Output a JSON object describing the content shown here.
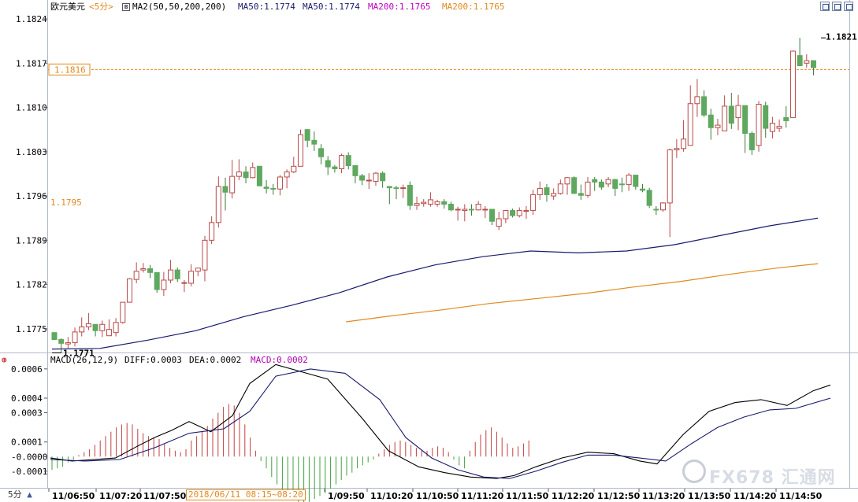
{
  "header": {
    "symbol": "欧元美元",
    "period": "<5分>",
    "indicator": "MA2(50,50,200,200)",
    "ma50_a": "MA50:1.1774",
    "ma50_b": "MA50:1.1774",
    "ma200_a": "MA200:1.1765",
    "ma200_b": "MA200:1.1765"
  },
  "macd_header": {
    "name": "MACD(26,12,9)",
    "diff": "DIFF:0.0003",
    "dea": "DEA:0.0002",
    "macd": "MACD:0.0002"
  },
  "bottom_bar": {
    "period": "5分",
    "range": "2018/06/11 08:15~08:20"
  },
  "watermark": "FX678 汇通网",
  "colors": {
    "up": "#b84a4a",
    "down": "#5fa85f",
    "ma50": "#1a1a6e",
    "ma200": "#e08a1e",
    "macd_label": "#b000b0",
    "ref_line": "#e08a1e"
  },
  "chart_data": [
    {
      "type": "candlestick",
      "title": "欧元美元 <5分>",
      "y_ticks": [
        "1.1824",
        "1.1817",
        "1.1810",
        "1.1803",
        "1.1796",
        "1.1789",
        "1.1782",
        "1.1775"
      ],
      "ylim": [
        1.1769,
        1.1824
      ],
      "x_ticks": [
        "11/06:50",
        "11/07:20",
        "11/07:50",
        "1/09:50",
        "11/10:20",
        "11/10:50",
        "11/11:20",
        "11/11:50",
        "11/12:20",
        "11/12:50",
        "11/13:20",
        "11/13:50",
        "11/14:20",
        "11/14:50"
      ],
      "annotations": {
        "high": "1.1821",
        "low": "1.1771",
        "current_price": "1.1816",
        "ref_price": "1.1795"
      },
      "candles": [
        [
          1.17744,
          1.17733,
          1.17743,
          1.17733
        ],
        [
          1.17733,
          1.17727,
          1.17735,
          1.17712
        ],
        [
          1.17726,
          1.17728,
          1.17737,
          1.17718
        ],
        [
          1.17728,
          1.17745,
          1.17752,
          1.17722
        ],
        [
          1.17745,
          1.17753,
          1.17768,
          1.17738
        ],
        [
          1.17753,
          1.17758,
          1.17775,
          1.17748
        ],
        [
          1.17757,
          1.17747,
          1.17757,
          1.17738
        ],
        [
          1.17747,
          1.17757,
          1.17763,
          1.17737
        ],
        [
          1.17739,
          1.17749,
          1.17765,
          1.17739
        ],
        [
          1.17744,
          1.1776,
          1.17767,
          1.17738
        ],
        [
          1.1776,
          1.17792,
          1.17792,
          1.17758
        ],
        [
          1.17792,
          1.17829,
          1.1783,
          1.17792
        ],
        [
          1.17828,
          1.17841,
          1.17855,
          1.17822
        ],
        [
          1.17843,
          1.17845,
          1.17854,
          1.17839
        ],
        [
          1.17845,
          1.17839,
          1.17851,
          1.1783
        ],
        [
          1.17839,
          1.17812,
          1.17839,
          1.17807
        ],
        [
          1.17812,
          1.17827,
          1.1784,
          1.17802
        ],
        [
          1.17827,
          1.17843,
          1.17859,
          1.17822
        ],
        [
          1.17843,
          1.17829,
          1.17847,
          1.17824
        ],
        [
          1.17823,
          1.17823,
          1.17827,
          1.17808
        ],
        [
          1.17822,
          1.17841,
          1.17852,
          1.17817
        ],
        [
          1.17841,
          1.17846,
          1.17846,
          1.17833
        ],
        [
          1.17843,
          1.1789,
          1.17897,
          1.17825
        ],
        [
          1.1789,
          1.17918,
          1.17928,
          1.17884
        ],
        [
          1.17918,
          1.17975,
          1.17991,
          1.1791
        ],
        [
          1.17975,
          1.17966,
          1.17989,
          1.17937
        ],
        [
          1.17965,
          1.17991,
          1.18017,
          1.17956
        ],
        [
          1.17991,
          1.17998,
          1.18018,
          1.17985
        ],
        [
          1.17998,
          1.17989,
          1.18007,
          1.1798
        ],
        [
          1.17989,
          1.18005,
          1.18013,
          1.17988
        ],
        [
          1.18007,
          1.17976,
          1.18007,
          1.17976
        ],
        [
          1.17974,
          1.17972,
          1.17985,
          1.17964
        ],
        [
          1.17972,
          1.17971,
          1.17979,
          1.17962
        ],
        [
          1.17971,
          1.1799,
          1.17993,
          1.17961
        ],
        [
          1.1799,
          1.17998,
          1.18002,
          1.17972
        ],
        [
          1.17998,
          1.18007,
          1.18022,
          1.17996
        ],
        [
          1.18007,
          1.18057,
          1.18065,
          1.18007
        ],
        [
          1.18065,
          1.18048,
          1.18066,
          1.18037
        ],
        [
          1.18048,
          1.18042,
          1.18062,
          1.18031
        ],
        [
          1.18035,
          1.18022,
          1.18042,
          1.1801
        ],
        [
          1.18016,
          1.18006,
          1.18023,
          1.17993
        ],
        [
          1.18006,
          1.18003,
          1.18009,
          1.17997
        ],
        [
          1.18003,
          1.18024,
          1.18027,
          1.17996
        ],
        [
          1.18024,
          1.18008,
          1.18029,
          1.18002
        ],
        [
          1.18008,
          1.17992,
          1.18008,
          1.1798
        ],
        [
          1.17992,
          1.17985,
          1.17995,
          1.17977
        ],
        [
          1.17984,
          1.17985,
          1.17996,
          1.17971
        ],
        [
          1.17983,
          1.17996,
          1.17998,
          1.17976
        ],
        [
          1.17996,
          1.17984,
          1.17999,
          1.17973
        ],
        [
          1.17975,
          1.17973,
          1.17975,
          1.17947
        ],
        [
          1.17973,
          1.17972,
          1.17976,
          1.17955
        ],
        [
          1.17973,
          1.17973,
          1.17978,
          1.17957
        ],
        [
          1.17977,
          1.17945,
          1.17983,
          1.17938
        ],
        [
          1.17945,
          1.17948,
          1.17959,
          1.17938
        ],
        [
          1.17948,
          1.1795,
          1.17955,
          1.17943
        ],
        [
          1.17947,
          1.17954,
          1.17966,
          1.17943
        ],
        [
          1.17947,
          1.17951,
          1.17954,
          1.17943
        ],
        [
          1.17951,
          1.17947,
          1.17955,
          1.1794
        ],
        [
          1.17947,
          1.17938,
          1.17951,
          1.17936
        ],
        [
          1.17938,
          1.17939,
          1.17943,
          1.17921
        ],
        [
          1.17937,
          1.17939,
          1.17947,
          1.1792
        ],
        [
          1.17939,
          1.17938,
          1.17947,
          1.17929
        ],
        [
          1.17938,
          1.17947,
          1.17952,
          1.17937
        ],
        [
          1.17938,
          1.17939,
          1.17944,
          1.17925
        ],
        [
          1.17939,
          1.1792,
          1.17939,
          1.17914
        ],
        [
          1.17912,
          1.17924,
          1.17935,
          1.17906
        ],
        [
          1.17924,
          1.17937,
          1.17937,
          1.17917
        ],
        [
          1.17937,
          1.17929,
          1.1794,
          1.17926
        ],
        [
          1.17929,
          1.17937,
          1.17942,
          1.17926
        ],
        [
          1.17937,
          1.17937,
          1.17944,
          1.17924
        ],
        [
          1.17937,
          1.17962,
          1.1797,
          1.1793
        ],
        [
          1.17962,
          1.17972,
          1.17983,
          1.17954
        ],
        [
          1.17973,
          1.17962,
          1.17979,
          1.17951
        ],
        [
          1.1796,
          1.17964,
          1.17972,
          1.17954
        ],
        [
          1.17964,
          1.17979,
          1.17986,
          1.17962
        ],
        [
          1.17979,
          1.17989,
          1.1799,
          1.17962
        ],
        [
          1.17989,
          1.17964,
          1.17991,
          1.17964
        ],
        [
          1.17964,
          1.17961,
          1.17978,
          1.17954
        ],
        [
          1.17961,
          1.17982,
          1.1799,
          1.17957
        ],
        [
          1.17986,
          1.17982,
          1.1799,
          1.17968
        ],
        [
          1.17982,
          1.17974,
          1.17986,
          1.1797
        ],
        [
          1.17979,
          1.17986,
          1.1799,
          1.17974
        ],
        [
          1.17986,
          1.17972,
          1.17987,
          1.1796
        ],
        [
          1.17979,
          1.17978,
          1.17989,
          1.17966
        ],
        [
          1.17978,
          1.17993,
          1.17996,
          1.17968
        ],
        [
          1.17993,
          1.17975,
          1.17993,
          1.1797
        ],
        [
          1.17971,
          1.17969,
          1.17979,
          1.17966
        ],
        [
          1.17969,
          1.17945,
          1.17973,
          1.17941
        ],
        [
          1.17939,
          1.17938,
          1.17944,
          1.1793
        ],
        [
          1.17938,
          1.17949,
          1.1795,
          1.17935
        ],
        [
          1.17949,
          1.18033,
          1.18035,
          1.17895
        ],
        [
          1.18033,
          1.18035,
          1.1805,
          1.1802
        ],
        [
          1.18035,
          1.1805,
          1.1808,
          1.1803
        ],
        [
          1.1804,
          1.18106,
          1.18135,
          1.1804
        ],
        [
          1.18106,
          1.18117,
          1.18145,
          1.18085
        ],
        [
          1.18117,
          1.18088,
          1.18127,
          1.18085
        ],
        [
          1.18088,
          1.18068,
          1.18098,
          1.18049
        ],
        [
          1.18068,
          1.18072,
          1.18082,
          1.18056
        ],
        [
          1.18063,
          1.18102,
          1.18119,
          1.18063
        ],
        [
          1.18102,
          1.18075,
          1.18123,
          1.18066
        ],
        [
          1.18084,
          1.18103,
          1.1812,
          1.18064
        ],
        [
          1.18103,
          1.18059,
          1.18103,
          1.18028
        ],
        [
          1.18059,
          1.18033,
          1.18062,
          1.18025
        ],
        [
          1.1804,
          1.18105,
          1.1811,
          1.1803
        ],
        [
          1.18103,
          1.18067,
          1.18109,
          1.18052
        ],
        [
          1.18062,
          1.18075,
          1.18085,
          1.18051
        ],
        [
          1.18067,
          1.1807,
          1.18081,
          1.18061
        ],
        [
          1.18084,
          1.18079,
          1.18102,
          1.18068
        ],
        [
          1.18084,
          1.18189,
          1.1819,
          1.18084
        ],
        [
          1.18182,
          1.18166,
          1.1821,
          1.18166
        ],
        [
          1.1817,
          1.18174,
          1.18184,
          1.18163
        ],
        [
          1.18174,
          1.18163,
          1.18174,
          1.18151
        ]
      ],
      "ma50": [
        [
          0,
          1.17718
        ],
        [
          7,
          1.17719
        ],
        [
          14,
          1.17732
        ],
        [
          21,
          1.17747
        ],
        [
          28,
          1.17769
        ],
        [
          35,
          1.17787
        ],
        [
          42,
          1.17807
        ],
        [
          49,
          1.17832
        ],
        [
          56,
          1.17851
        ],
        [
          63,
          1.17864
        ],
        [
          70,
          1.17873
        ],
        [
          77,
          1.1787
        ],
        [
          84,
          1.17873
        ],
        [
          91,
          1.17883
        ],
        [
          98,
          1.17898
        ],
        [
          105,
          1.17913
        ],
        [
          112,
          1.17925
        ]
      ],
      "ma200": [
        [
          43,
          1.17761
        ],
        [
          50,
          1.17771
        ],
        [
          57,
          1.1778
        ],
        [
          64,
          1.1779
        ],
        [
          71,
          1.17798
        ],
        [
          78,
          1.17806
        ],
        [
          85,
          1.17816
        ],
        [
          92,
          1.17825
        ],
        [
          99,
          1.17836
        ],
        [
          106,
          1.17846
        ],
        [
          112,
          1.17853
        ]
      ]
    },
    {
      "type": "line",
      "title": "MACD(26,12,9)",
      "y_ticks": [
        "0.0006",
        "0.0004",
        "0.0003",
        "0.0001",
        "-0.0000",
        "-0.0001"
      ],
      "ylim": [
        -0.00018,
        0.00062
      ],
      "series": [
        {
          "name": "DIFF",
          "values": [
            [
              0,
              -1e-05
            ],
            [
              5,
              -3e-05
            ],
            [
              10,
              -2e-05
            ],
            [
              15,
              -1e-05
            ],
            [
              20,
              7e-05
            ],
            [
              24,
              0.00013
            ],
            [
              28,
              0.00018
            ],
            [
              32,
              0.00024
            ],
            [
              37,
              0.00017
            ],
            [
              42,
              0.00028
            ],
            [
              46,
              0.0005
            ],
            [
              52,
              0.00063
            ],
            [
              58,
              0.00058
            ],
            [
              64,
              0.00053
            ],
            [
              72,
              0.00026
            ],
            [
              78,
              4e-05
            ],
            [
              85,
              -7e-05
            ],
            [
              91,
              -0.00011
            ],
            [
              97,
              -0.00014
            ],
            [
              103,
              -0.00015
            ],
            [
              107,
              -0.00013
            ],
            [
              112,
              -7e-05
            ],
            [
              118,
              -1e-05
            ],
            [
              124,
              3e-05
            ],
            [
              130,
              2e-05
            ],
            [
              136,
              -3e-05
            ],
            [
              140,
              -5e-05
            ],
            [
              146,
              0.00015
            ],
            [
              152,
              0.00031
            ],
            [
              158,
              0.00037
            ],
            [
              164,
              0.00039
            ],
            [
              170,
              0.00035
            ],
            [
              176,
              0.00045
            ],
            [
              180,
              0.00049
            ]
          ]
        },
        {
          "name": "DEA",
          "values": [
            [
              0,
              -2e-05
            ],
            [
              8,
              -3e-05
            ],
            [
              16,
              -2e-05
            ],
            [
              24,
              6e-05
            ],
            [
              32,
              0.00016
            ],
            [
              40,
              0.00019
            ],
            [
              46,
              0.00031
            ],
            [
              52,
              0.00055
            ],
            [
              60,
              0.0006
            ],
            [
              68,
              0.00057
            ],
            [
              76,
              0.00039
            ],
            [
              82,
              0.00013
            ],
            [
              88,
              -1e-05
            ],
            [
              94,
              -9e-05
            ],
            [
              100,
              -0.00014
            ],
            [
              106,
              -0.00015
            ],
            [
              112,
              -0.0001
            ],
            [
              118,
              -4e-05
            ],
            [
              124,
              1e-05
            ],
            [
              130,
              1e-05
            ],
            [
              136,
              -1e-05
            ],
            [
              142,
              -3e-05
            ],
            [
              148,
              9e-05
            ],
            [
              154,
              0.0002
            ],
            [
              160,
              0.00027
            ],
            [
              166,
              0.00032
            ],
            [
              172,
              0.00033
            ],
            [
              180,
              0.0004
            ]
          ]
        }
      ],
      "histogram": [
        -9e-05,
        -8e-05,
        -7e-05,
        -4e-05,
        -2e-05,
        1e-05,
        3e-05,
        5e-05,
        8e-05,
        0.00011,
        0.00014,
        0.00017,
        0.0002,
        0.00022,
        0.00023,
        0.00022,
        0.00019,
        0.00016,
        0.00014,
        0.00013,
        0.00012,
        9e-05,
        6e-05,
        4e-05,
        3e-05,
        5e-05,
        0.00011,
        0.00014,
        0.00017,
        0.00021,
        0.00026,
        0.0003,
        0.00034,
        0.00036,
        0.00035,
        0.0003,
        0.00022,
        0.00013,
        4e-05,
        -3e-05,
        -8e-05,
        -0.00014,
        -0.00019,
        -0.00024,
        -0.00027,
        -0.00029,
        -0.00031,
        -0.00032,
        -0.00031,
        -0.00029,
        -0.00027,
        -0.00025,
        -0.00022,
        -0.00019,
        -0.00016,
        -0.00013,
        -0.00011,
        -8e-05,
        -6e-05,
        -4e-05,
        -2e-05,
        2e-05,
        5e-05,
        8e-05,
        0.0001,
        0.00011,
        0.0001,
        8e-05,
        6e-05,
        4e-05,
        4e-05,
        6e-05,
        7e-05,
        6e-05,
        3e-05,
        -2e-05,
        -6e-05,
        -8e-05,
        4e-05,
        0.0001,
        0.00015,
        0.00018,
        0.0002,
        0.00017,
        0.00013,
        9e-05,
        6e-05,
        7e-05,
        9e-05,
        0.00011
      ]
    }
  ]
}
